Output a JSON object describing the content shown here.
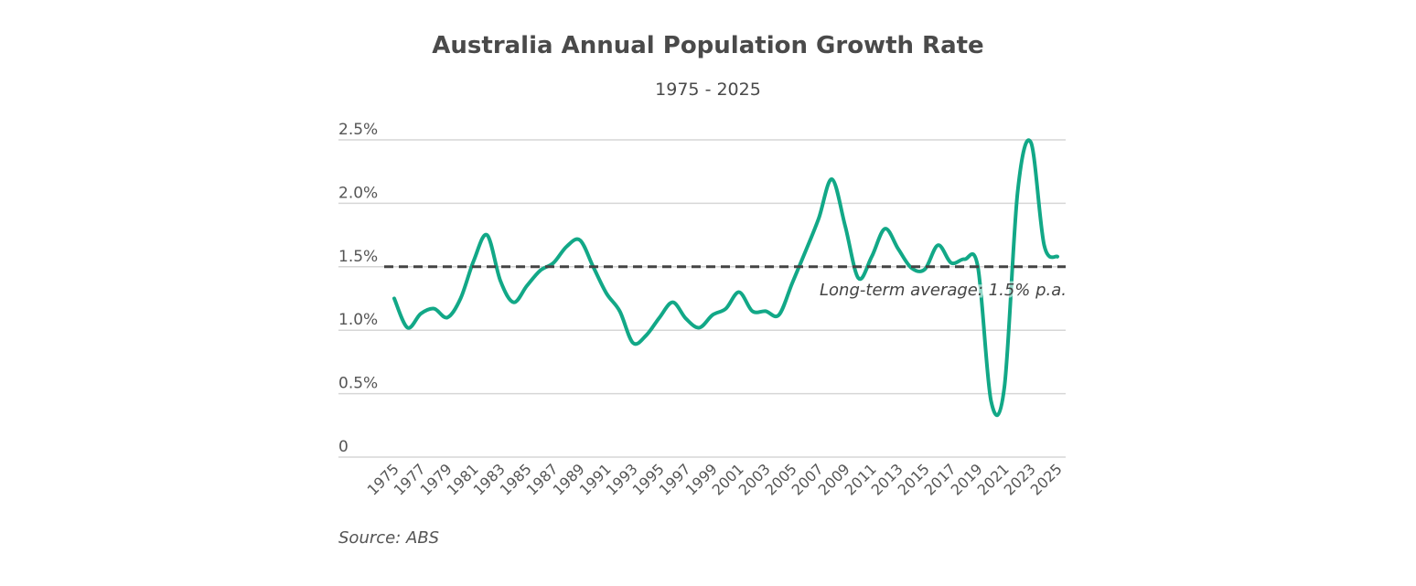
{
  "chart_data": {
    "type": "line",
    "title": "Australia Annual Population Growth Rate",
    "subtitle": "1975 - 2025",
    "source": "Source: ABS",
    "xlabel": "",
    "ylabel": "",
    "ylim": [
      0,
      2.5
    ],
    "yticks": [
      0,
      0.5,
      1.0,
      1.5,
      2.0,
      2.5
    ],
    "ytick_labels": [
      "0",
      "0.5%",
      "1.0%",
      "1.5%",
      "2.0%",
      "2.5%"
    ],
    "xtick_labels": [
      "1975",
      "1977",
      "1979",
      "1981",
      "1983",
      "1985",
      "1987",
      "1989",
      "1991",
      "1993",
      "1995",
      "1997",
      "1999",
      "2001",
      "2003",
      "2005",
      "2007",
      "2009",
      "2011",
      "2013",
      "2015",
      "2017",
      "2019",
      "2021",
      "2023",
      "2025"
    ],
    "grid": true,
    "line_color": "#12a887",
    "x": [
      1975,
      1976,
      1977,
      1978,
      1979,
      1980,
      1981,
      1982,
      1983,
      1984,
      1985,
      1986,
      1987,
      1988,
      1989,
      1990,
      1991,
      1992,
      1993,
      1994,
      1995,
      1996,
      1997,
      1998,
      1999,
      2000,
      2001,
      2002,
      2003,
      2004,
      2005,
      2006,
      2007,
      2008,
      2009,
      2010,
      2011,
      2012,
      2013,
      2014,
      2015,
      2016,
      2017,
      2018,
      2019,
      2020,
      2021,
      2022,
      2023,
      2024,
      2025
    ],
    "values": [
      1.25,
      1.02,
      1.13,
      1.17,
      1.1,
      1.25,
      1.55,
      1.75,
      1.39,
      1.22,
      1.35,
      1.47,
      1.53,
      1.66,
      1.71,
      1.5,
      1.29,
      1.15,
      0.9,
      0.96,
      1.1,
      1.22,
      1.09,
      1.02,
      1.12,
      1.17,
      1.3,
      1.15,
      1.15,
      1.12,
      1.37,
      1.62,
      1.88,
      2.19,
      1.82,
      1.41,
      1.58,
      1.8,
      1.64,
      1.49,
      1.48,
      1.67,
      1.53,
      1.56,
      1.5,
      0.44,
      0.55,
      2.09,
      2.48,
      1.67,
      1.58
    ],
    "reference_line": {
      "value": 1.5,
      "label": "Long-term average: 1.5% p.a.",
      "style": "dashed",
      "color": "#444444"
    }
  }
}
